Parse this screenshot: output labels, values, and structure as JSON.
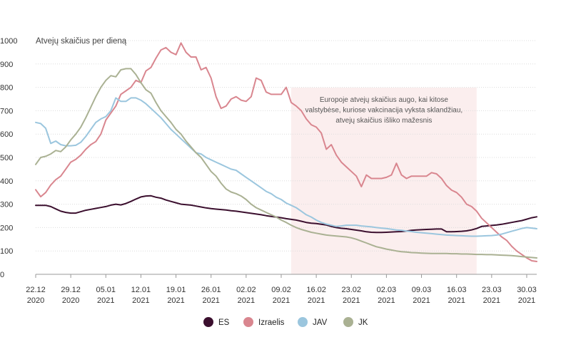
{
  "chart_data": {
    "type": "line",
    "ylabel": "Atvejų skaičius per dieną",
    "ylim": [
      0,
      1000
    ],
    "yticks": [
      0,
      100,
      200,
      300,
      400,
      500,
      600,
      700,
      800,
      900,
      1000
    ],
    "grid": true,
    "legend_position": "bottom-center",
    "x_tick_labels": [
      [
        "22.12",
        "2020"
      ],
      [
        "29.12",
        "2020"
      ],
      [
        "05.01",
        "2021"
      ],
      [
        "12.01",
        "2021"
      ],
      [
        "19.01",
        "2021"
      ],
      [
        "26.01",
        "2021"
      ],
      [
        "02.02",
        "2021"
      ],
      [
        "09.02",
        "2021"
      ],
      [
        "16.02",
        "2021"
      ],
      [
        "23.02",
        "2021"
      ],
      [
        "02.03",
        "2021"
      ],
      [
        "09.03",
        "2021"
      ],
      [
        "16.03",
        "2021"
      ],
      [
        "23.03",
        "2021"
      ],
      [
        "30.03",
        "2021"
      ]
    ],
    "x_dates": [
      "2020-12-22",
      "2020-12-23",
      "2020-12-24",
      "2020-12-25",
      "2020-12-26",
      "2020-12-27",
      "2020-12-28",
      "2020-12-29",
      "2020-12-30",
      "2020-12-31",
      "2021-01-01",
      "2021-01-02",
      "2021-01-03",
      "2021-01-04",
      "2021-01-05",
      "2021-01-06",
      "2021-01-07",
      "2021-01-08",
      "2021-01-09",
      "2021-01-10",
      "2021-01-11",
      "2021-01-12",
      "2021-01-13",
      "2021-01-14",
      "2021-01-15",
      "2021-01-16",
      "2021-01-17",
      "2021-01-18",
      "2021-01-19",
      "2021-01-20",
      "2021-01-21",
      "2021-01-22",
      "2021-01-23",
      "2021-01-24",
      "2021-01-25",
      "2021-01-26",
      "2021-01-27",
      "2021-01-28",
      "2021-01-29",
      "2021-01-30",
      "2021-01-31",
      "2021-02-01",
      "2021-02-02",
      "2021-02-03",
      "2021-02-04",
      "2021-02-05",
      "2021-02-06",
      "2021-02-07",
      "2021-02-08",
      "2021-02-09",
      "2021-02-10",
      "2021-02-11",
      "2021-02-12",
      "2021-02-13",
      "2021-02-14",
      "2021-02-15",
      "2021-02-16",
      "2021-02-17",
      "2021-02-18",
      "2021-02-19",
      "2021-02-20",
      "2021-02-21",
      "2021-02-22",
      "2021-02-23",
      "2021-02-24",
      "2021-02-25",
      "2021-02-26",
      "2021-02-27",
      "2021-02-28",
      "2021-03-01",
      "2021-03-02",
      "2021-03-03",
      "2021-03-04",
      "2021-03-05",
      "2021-03-06",
      "2021-03-07",
      "2021-03-08",
      "2021-03-09",
      "2021-03-10",
      "2021-03-11",
      "2021-03-12",
      "2021-03-13",
      "2021-03-14",
      "2021-03-15",
      "2021-03-16",
      "2021-03-17",
      "2021-03-18",
      "2021-03-19",
      "2021-03-20",
      "2021-03-21",
      "2021-03-22",
      "2021-03-23",
      "2021-03-24",
      "2021-03-25",
      "2021-03-26",
      "2021-03-27",
      "2021-03-28",
      "2021-03-29",
      "2021-03-30",
      "2021-03-31",
      "2021-04-01"
    ],
    "highlight_range": [
      "2021-02-11",
      "2021-03-20"
    ],
    "highlight_color": "#fbeeee",
    "annotation": {
      "lines": [
        "Europoje atvejų skaičius augo, kai kitose",
        "valstybėse, kuriose vakcinacija vyksta sklandžiau,",
        "atvejų skaičius išliko mažesnis"
      ]
    },
    "series": [
      {
        "name": "ES",
        "color": "#3b0f2e",
        "values": [
          295,
          295,
          295,
          290,
          280,
          270,
          265,
          262,
          262,
          268,
          274,
          278,
          282,
          286,
          290,
          296,
          300,
          297,
          303,
          312,
          322,
          331,
          335,
          336,
          330,
          326,
          318,
          312,
          306,
          300,
          298,
          296,
          292,
          288,
          284,
          281,
          279,
          277,
          275,
          272,
          270,
          267,
          264,
          261,
          258,
          255,
          251,
          248,
          245,
          242,
          238,
          235,
          232,
          227,
          222,
          219,
          217,
          214,
          211,
          205,
          200,
          197,
          195,
          192,
          189,
          186,
          182,
          180,
          179,
          179,
          180,
          181,
          182,
          183,
          185,
          188,
          190,
          191,
          192,
          193,
          194,
          194,
          182,
          182,
          183,
          184,
          186,
          190,
          196,
          205,
          207,
          209,
          211,
          214,
          218,
          222,
          226,
          230,
          236,
          242,
          246
        ]
      },
      {
        "name": "Izraelis",
        "color": "#d9868f",
        "values": [
          362,
          332,
          350,
          382,
          405,
          420,
          450,
          480,
          492,
          510,
          535,
          555,
          568,
          600,
          660,
          690,
          720,
          770,
          785,
          800,
          830,
          820,
          870,
          885,
          925,
          960,
          970,
          950,
          940,
          990,
          950,
          930,
          930,
          875,
          885,
          840,
          760,
          710,
          720,
          750,
          760,
          745,
          740,
          760,
          840,
          830,
          780,
          770,
          770,
          770,
          800,
          735,
          720,
          700,
          665,
          640,
          630,
          605,
          535,
          555,
          510,
          480,
          460,
          440,
          420,
          375,
          425,
          410,
          410,
          410,
          415,
          425,
          475,
          425,
          410,
          420,
          420,
          420,
          420,
          435,
          430,
          410,
          380,
          360,
          350,
          330,
          300,
          290,
          270,
          240,
          220,
          200,
          180,
          160,
          145,
          120,
          100,
          85,
          70,
          58,
          55
        ]
      },
      {
        "name": "JAV",
        "color": "#9bc6de",
        "values": [
          650,
          645,
          625,
          560,
          570,
          555,
          550,
          550,
          552,
          565,
          590,
          620,
          650,
          665,
          675,
          700,
          755,
          740,
          740,
          755,
          755,
          745,
          730,
          710,
          690,
          670,
          645,
          620,
          600,
          580,
          560,
          540,
          520,
          515,
          500,
          490,
          480,
          470,
          460,
          450,
          445,
          430,
          415,
          400,
          385,
          370,
          355,
          345,
          330,
          320,
          305,
          295,
          285,
          270,
          255,
          245,
          232,
          222,
          215,
          210,
          205,
          207,
          210,
          210,
          210,
          207,
          205,
          203,
          200,
          198,
          196,
          193,
          190,
          188,
          185,
          183,
          180,
          178,
          176,
          174,
          172,
          170,
          168,
          167,
          166,
          165,
          164,
          163,
          163,
          164,
          165,
          166,
          168,
          172,
          178,
          184,
          190,
          196,
          200,
          198,
          195
        ]
      },
      {
        "name": "JK",
        "color": "#aab193",
        "values": [
          470,
          500,
          505,
          515,
          530,
          525,
          545,
          575,
          600,
          630,
          670,
          715,
          760,
          800,
          830,
          850,
          845,
          875,
          880,
          880,
          855,
          820,
          790,
          775,
          735,
          700,
          675,
          650,
          620,
          600,
          570,
          545,
          520,
          500,
          470,
          440,
          420,
          390,
          365,
          352,
          345,
          335,
          320,
          300,
          285,
          275,
          265,
          255,
          245,
          232,
          222,
          210,
          200,
          192,
          186,
          180,
          176,
          172,
          168,
          166,
          164,
          162,
          160,
          156,
          150,
          142,
          134,
          126,
          118,
          113,
          108,
          104,
          100,
          97,
          95,
          93,
          92,
          91,
          90,
          89,
          89,
          89,
          89,
          88,
          88,
          87,
          87,
          86,
          85,
          85,
          84,
          84,
          83,
          82,
          81,
          80,
          78,
          76,
          74,
          72,
          70
        ]
      }
    ]
  }
}
